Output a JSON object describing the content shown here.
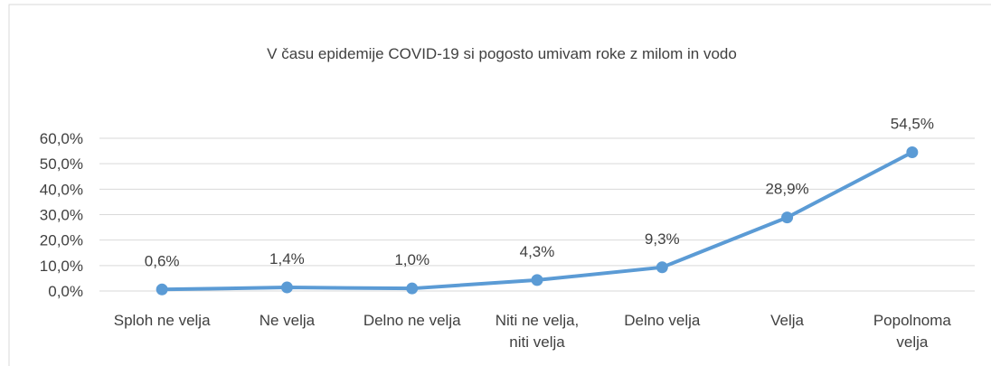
{
  "chart_data": {
    "type": "line",
    "title": "V času epidemije COVID-19 si pogosto umivam roke z milom in vodo",
    "categories": [
      "Sploh ne velja",
      "Ne velja",
      "Delno ne velja",
      "Niti ne velja, niti velja",
      "Delno velja",
      "Velja",
      "Popolnoma velja"
    ],
    "series": [
      {
        "name": "Series1",
        "color": "#5b9bd5",
        "values": [
          0.6,
          1.4,
          1.0,
          4.3,
          9.3,
          28.9,
          54.5
        ],
        "value_labels": [
          "0,6%",
          "1,4%",
          "1,0%",
          "4,3%",
          "9,3%",
          "28,9%",
          "54,5%"
        ]
      }
    ],
    "ylim": [
      0,
      60
    ],
    "yticks": [
      {
        "value": 0,
        "label": "0,0%"
      },
      {
        "value": 10,
        "label": "10,0%"
      },
      {
        "value": 20,
        "label": "20,0%"
      },
      {
        "value": 30,
        "label": "30,0%"
      },
      {
        "value": 40,
        "label": "40,0%"
      },
      {
        "value": 50,
        "label": "50,0%"
      },
      {
        "value": 60,
        "label": "60,0%"
      }
    ],
    "grid": true
  }
}
